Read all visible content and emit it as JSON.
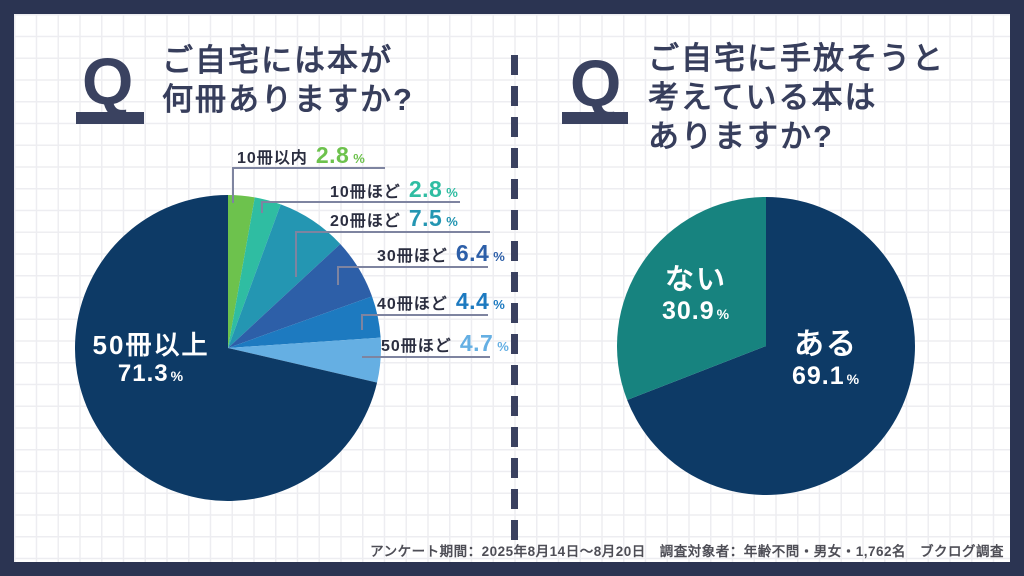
{
  "canvas": {
    "frame_color": "#2b3452",
    "grid_color": "#ededf1",
    "divider_color": "#3a4160",
    "title_color": "#373e5c"
  },
  "left_panel": {
    "q_mark": "Q",
    "title_lines": [
      "ご自宅には本が",
      "何冊ありますか?"
    ]
  },
  "right_panel": {
    "q_mark": "Q",
    "title_lines": [
      "ご自宅に手放そうと",
      "考えている本は",
      "ありますか?"
    ]
  },
  "footer": {
    "survey_note": "アンケート期間：2025年8月14日～8月20日　調査対象者：年齢不問・男女・1,762名　ブクログ調査"
  },
  "chart_data": [
    {
      "type": "pie",
      "title": "ご自宅には本が何冊ありますか?",
      "start": "top",
      "direction": "clockwise",
      "segments": [
        {
          "label": "10冊以内",
          "value": 2.8,
          "unit": "%",
          "color": "#6dc24d"
        },
        {
          "label": "10冊ほど",
          "value": 2.8,
          "unit": "%",
          "color": "#2fbda2"
        },
        {
          "label": "20冊ほど",
          "value": 7.5,
          "unit": "%",
          "color": "#2496b2"
        },
        {
          "label": "30冊ほど",
          "value": 6.4,
          "unit": "%",
          "color": "#2d5fa8"
        },
        {
          "label": "40冊ほど",
          "value": 4.4,
          "unit": "%",
          "color": "#1d7ac0"
        },
        {
          "label": "50冊ほど",
          "value": 4.7,
          "unit": "%",
          "color": "#65afe3"
        },
        {
          "label": "50冊以上",
          "value": 71.3,
          "unit": "%",
          "color": "#0d3a66"
        }
      ]
    },
    {
      "type": "pie",
      "title": "ご自宅に手放そうと考えている本はありますか?",
      "start": "top",
      "direction": "clockwise",
      "segments": [
        {
          "label": "ある",
          "value": 69.1,
          "unit": "%",
          "color": "#0d3a66"
        },
        {
          "label": "ない",
          "value": 30.9,
          "unit": "%",
          "color": "#17837f"
        }
      ]
    }
  ]
}
